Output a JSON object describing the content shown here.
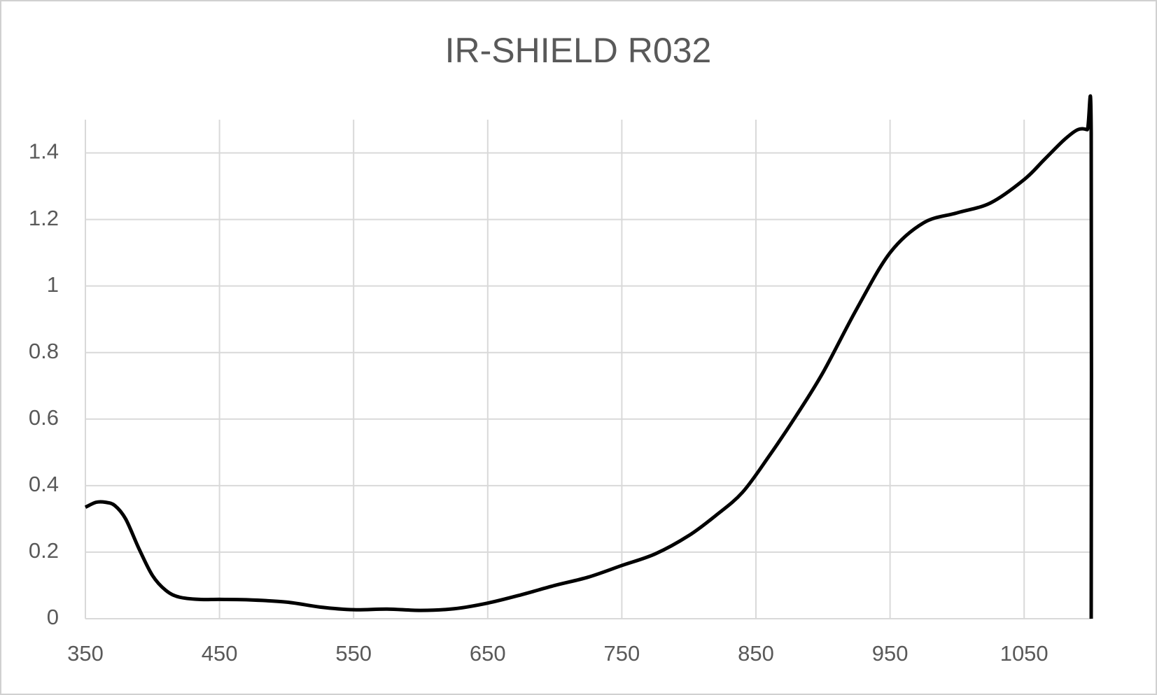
{
  "chart_data": {
    "type": "line",
    "title": "IR-SHIELD R032",
    "x": [
      350,
      358,
      365,
      372,
      380,
      390,
      400,
      410,
      420,
      435,
      450,
      470,
      500,
      525,
      550,
      575,
      600,
      625,
      650,
      675,
      700,
      725,
      750,
      775,
      800,
      820,
      840,
      860,
      880,
      900,
      925,
      950,
      975,
      1000,
      1025,
      1050,
      1065,
      1080,
      1090,
      1097,
      1100,
      1100
    ],
    "series": [
      {
        "name": "IR-SHIELD R032",
        "color": "#000000",
        "values": [
          0.335,
          0.35,
          0.35,
          0.34,
          0.3,
          0.21,
          0.13,
          0.085,
          0.065,
          0.058,
          0.058,
          0.057,
          0.05,
          0.035,
          0.027,
          0.029,
          0.025,
          0.03,
          0.047,
          0.072,
          0.1,
          0.125,
          0.16,
          0.195,
          0.25,
          0.31,
          0.38,
          0.49,
          0.61,
          0.74,
          0.93,
          1.1,
          1.19,
          1.22,
          1.25,
          1.32,
          1.38,
          1.44,
          1.47,
          1.47,
          1.46,
          0
        ]
      }
    ],
    "xlim": [
      350,
      1100
    ],
    "xticks": [
      350,
      450,
      550,
      650,
      750,
      850,
      950,
      1050
    ],
    "ylim": [
      0,
      1.5
    ],
    "yticks": [
      0,
      0.2,
      0.4,
      0.6,
      0.8,
      1,
      1.2,
      1.4
    ],
    "grid": true
  }
}
